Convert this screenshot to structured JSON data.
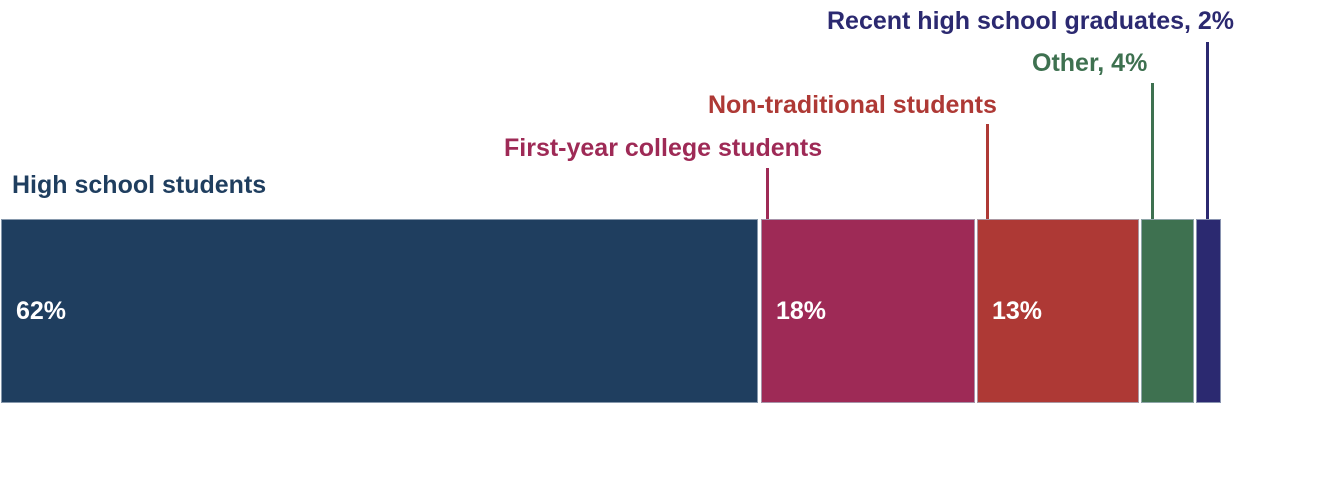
{
  "chart_data": {
    "type": "bar",
    "subtype": "horizontal-stacked-single-bar",
    "title": "",
    "xlabel": "",
    "ylabel": "",
    "axes_visible": false,
    "legend": "none-direct-callout-labels",
    "categories": [
      "High school students",
      "First-year college students",
      "Non-traditional students",
      "Other",
      "Recent high school graduates"
    ],
    "values": [
      62,
      18,
      13,
      4,
      2
    ],
    "unit": "%",
    "segments": [
      {
        "label": "High school students",
        "value": 62,
        "bar_label": "62%",
        "callout": "High school students",
        "color": "#1F3E5F"
      },
      {
        "label": "First-year college students",
        "value": 18,
        "bar_label": "18%",
        "callout": "First-year college students",
        "color": "#9E2A56"
      },
      {
        "label": "Non-traditional students",
        "value": 13,
        "bar_label": "13%",
        "callout": "Non-traditional students",
        "color": "#AE3935"
      },
      {
        "label": "Other",
        "value": 4,
        "bar_label": "",
        "callout": "Other, 4%",
        "color": "#3E7150"
      },
      {
        "label": "Recent high school graduates",
        "value": 2,
        "bar_label": "",
        "callout": "Recent high school graduates, 2%",
        "color": "#2B2970"
      }
    ]
  },
  "colors": {
    "background": "#FFFFFF",
    "segment_outline": "#A9B7C6",
    "bar_label_text": "#FFFFFF"
  }
}
